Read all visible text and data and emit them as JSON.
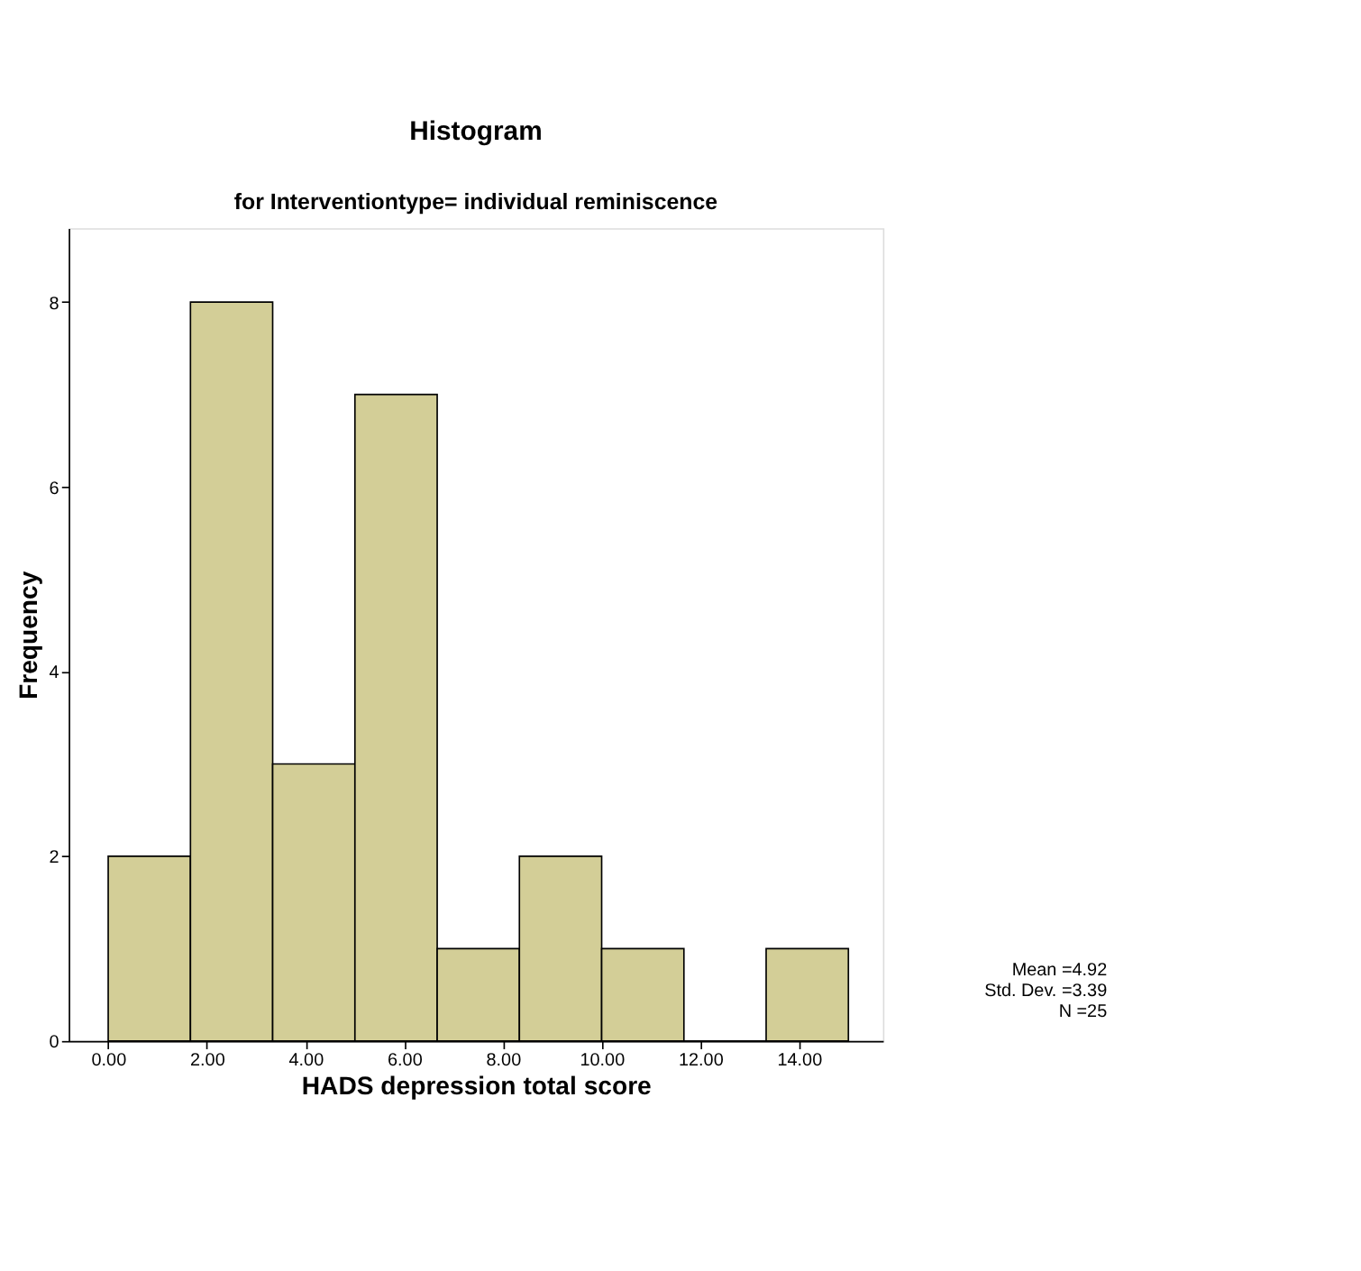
{
  "chart_data": {
    "type": "histogram",
    "title": "Histogram",
    "subtitle": "for Interventiontype= individual reminiscence",
    "xlabel": "HADS depression total score",
    "ylabel": "Frequency",
    "bins": [
      0,
      1.667,
      3.333,
      5,
      6.667,
      8.333,
      10,
      11.667,
      13.333,
      15
    ],
    "values": [
      2,
      8,
      3,
      7,
      1,
      2,
      1,
      0,
      1
    ],
    "color": "#d3ce97",
    "xlim": [
      -0.8,
      15.7
    ],
    "ylim": [
      0,
      8.8
    ],
    "xticks": [
      {
        "value": 0,
        "label": "0.00"
      },
      {
        "value": 2,
        "label": "2.00"
      },
      {
        "value": 4,
        "label": "4.00"
      },
      {
        "value": 6,
        "label": "6.00"
      },
      {
        "value": 8,
        "label": "8.00"
      },
      {
        "value": 10,
        "label": "10.00"
      },
      {
        "value": 12,
        "label": "12.00"
      },
      {
        "value": 14,
        "label": "14.00"
      }
    ],
    "yticks": [
      0,
      2,
      4,
      6,
      8
    ],
    "grid": false,
    "annotations": [
      "Mean =4.92",
      "Std. Dev. =3.39",
      "N =25"
    ]
  }
}
